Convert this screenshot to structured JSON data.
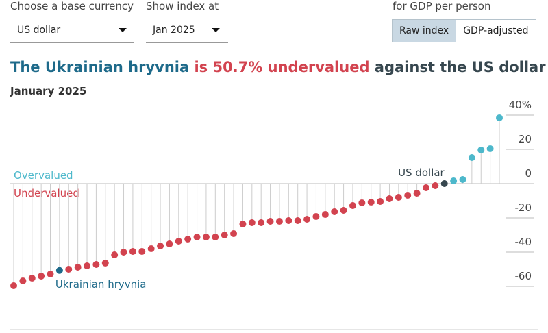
{
  "controls": {
    "currency_label": "Choose a base currency",
    "currency_value": "US dollar",
    "index_label": "Show index at",
    "index_value": "Jan 2025",
    "adjust_label": "for GDP per person",
    "buttons": [
      "Raw index",
      "GDP-adjusted"
    ]
  },
  "chart_data": {
    "type": "lollipop",
    "title": [
      "The Ukrainian hryvnia",
      " is 50.7% undervalued",
      " against the US dollar"
    ],
    "subtitle": "January 2025",
    "annotations": {
      "over": "Overvalued",
      "under": "Undervalued"
    },
    "categories": [
      null,
      null,
      null,
      null,
      null,
      "Ukrainian hryvnia",
      null,
      null,
      null,
      null,
      null,
      null,
      null,
      null,
      null,
      null,
      null,
      null,
      null,
      null,
      null,
      null,
      null,
      null,
      null,
      null,
      null,
      null,
      null,
      null,
      null,
      null,
      null,
      null,
      null,
      null,
      null,
      null,
      null,
      null,
      null,
      null,
      null,
      null,
      null,
      null,
      null,
      "US dollar",
      null,
      null,
      null,
      null,
      null,
      null
    ],
    "values": [
      -59.6,
      -56.8,
      -55.2,
      -54,
      -52.8,
      -50.7,
      -50,
      -48.8,
      -48,
      -47.2,
      -46.4,
      -41.6,
      -40,
      -39.6,
      -39.6,
      -38,
      -36.4,
      -35.2,
      -33.6,
      -32.4,
      -31.2,
      -31.2,
      -31.2,
      -30,
      -29.2,
      -23.6,
      -22.8,
      -22.8,
      -22,
      -22,
      -21.6,
      -21.6,
      -20.8,
      -19.2,
      -18,
      -16.4,
      -15.6,
      -12.8,
      -11.2,
      -10.8,
      -10.4,
      -8.8,
      -8,
      -6.8,
      -5.6,
      -2.4,
      -1.2,
      0,
      1.6,
      2.4,
      15.2,
      19.6,
      20.4,
      38.4
    ],
    "colors": {
      "over": "#4db8cb",
      "under": "#d2434f",
      "highlight": "#1e6a8a",
      "base": "#37474f"
    },
    "ylim": [
      -65,
      45
    ],
    "yticks": [
      {
        "value": 40,
        "label": "40%"
      },
      20,
      0,
      -20,
      -40,
      -60
    ]
  }
}
